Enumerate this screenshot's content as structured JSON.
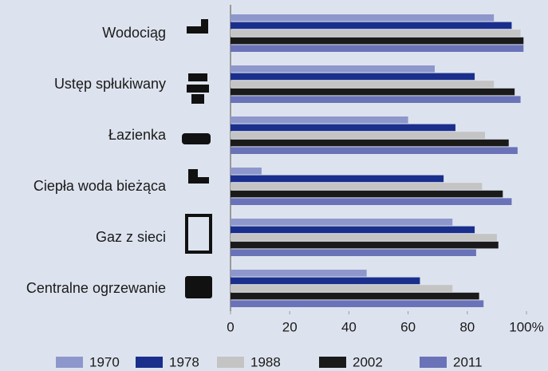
{
  "chart_data": {
    "type": "bar",
    "orientation": "horizontal",
    "categories": [
      "Wodociąg",
      "Ustęp spłukiwany",
      "Łazienka",
      "Ciepła woda bieżąca",
      "Gaz z sieci",
      "Centralne ogrzewanie"
    ],
    "series": [
      {
        "name": "1970",
        "color": "#8e97cc",
        "values": [
          89,
          69,
          60,
          10.5,
          75,
          46
        ]
      },
      {
        "name": "1978",
        "color": "#1a2f8c",
        "values": [
          95,
          82.5,
          76,
          72,
          82.5,
          64
        ]
      },
      {
        "name": "1988",
        "color": "#c4c4c4",
        "values": [
          98,
          89,
          86,
          85,
          90,
          75
        ]
      },
      {
        "name": "2002",
        "color": "#1a1a1a",
        "values": [
          99,
          96,
          94,
          92,
          90.5,
          84
        ]
      },
      {
        "name": "2011",
        "color": "#6a72b8",
        "values": [
          99,
          98,
          97,
          95,
          83,
          85.5
        ]
      }
    ],
    "xlim": [
      0,
      100
    ],
    "xticks": [
      0,
      20,
      40,
      60,
      80,
      {
        "value": 100,
        "label": "100%"
      }
    ]
  }
}
